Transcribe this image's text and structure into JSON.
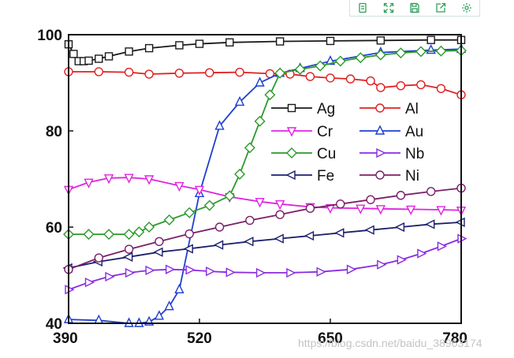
{
  "toolbar": {
    "buttons": [
      {
        "icon": "copy-icon"
      },
      {
        "icon": "expand-icon"
      },
      {
        "icon": "save-icon"
      },
      {
        "icon": "share-icon"
      },
      {
        "icon": "settings-icon"
      }
    ],
    "color": "#2e9e5b"
  },
  "watermark": "https://blog.csdn.net/baidu_38963174",
  "chart_data": {
    "type": "line",
    "title": "",
    "xlabel": "",
    "ylabel": "",
    "xlim": [
      390,
      780
    ],
    "ylim": [
      40,
      100
    ],
    "xticks": [
      390,
      520,
      650,
      780
    ],
    "yticks": [
      40,
      60,
      80,
      100
    ],
    "grid": false,
    "legend_position": "middle-right",
    "series": [
      {
        "name": "Ag",
        "color": "#1a1a1a",
        "marker": "square",
        "x": [
          390,
          395,
          400,
          405,
          410,
          420,
          430,
          450,
          470,
          500,
          520,
          550,
          600,
          650,
          700,
          750,
          780
        ],
        "y": [
          98,
          96,
          94.5,
          94.5,
          94.6,
          95,
          95.5,
          96.5,
          97.2,
          97.8,
          98.1,
          98.4,
          98.6,
          98.7,
          98.8,
          98.9,
          98.9
        ]
      },
      {
        "name": "Al",
        "color": "#e02020",
        "marker": "circle",
        "x": [
          390,
          420,
          450,
          470,
          500,
          530,
          560,
          590,
          610,
          630,
          650,
          670,
          690,
          700,
          720,
          740,
          760,
          780
        ],
        "y": [
          92.3,
          92.3,
          92.2,
          91.8,
          92,
          92.1,
          92.2,
          91.9,
          91.8,
          91.3,
          91,
          90.8,
          90.4,
          89,
          89.4,
          89.6,
          88.8,
          87.5
        ]
      },
      {
        "name": "Au",
        "color": "#1f3fd1",
        "marker": "triangle-up",
        "x": [
          390,
          420,
          450,
          460,
          470,
          480,
          490,
          500,
          520,
          540,
          560,
          580,
          600,
          620,
          650,
          700,
          750,
          780
        ],
        "y": [
          40.8,
          40.6,
          40,
          40,
          40.3,
          41.5,
          43.5,
          47,
          67,
          81,
          86,
          90,
          92,
          93,
          94.5,
          96.3,
          96.8,
          97
        ]
      },
      {
        "name": "Cr",
        "color": "#e024e0",
        "marker": "triangle-down",
        "x": [
          390,
          410,
          430,
          450,
          470,
          500,
          520,
          550,
          580,
          600,
          630,
          650,
          680,
          700,
          730,
          760,
          780
        ],
        "y": [
          67.8,
          69.3,
          70.2,
          70.3,
          70,
          68.6,
          67.8,
          66.3,
          65.3,
          64.8,
          64.2,
          64,
          63.9,
          63.8,
          63.7,
          63.6,
          63.5
        ]
      },
      {
        "name": "Cu",
        "color": "#2c9a2c",
        "marker": "diamond",
        "x": [
          390,
          410,
          430,
          450,
          460,
          470,
          490,
          510,
          530,
          550,
          560,
          570,
          580,
          590,
          600,
          620,
          640,
          660,
          680,
          700,
          720,
          740,
          760,
          780
        ],
        "y": [
          58.5,
          58.5,
          58.5,
          58.5,
          59,
          60,
          61.5,
          63,
          64.5,
          66.5,
          71,
          76.5,
          82,
          87.5,
          92,
          92.8,
          93.5,
          94.5,
          95.2,
          95.8,
          96.2,
          96.5,
          96.6,
          96.7
        ]
      },
      {
        "name": "Fe",
        "color": "#1c1f6e",
        "marker": "triangle-left",
        "x": [
          390,
          420,
          450,
          480,
          510,
          540,
          570,
          600,
          630,
          660,
          690,
          720,
          750,
          780
        ],
        "y": [
          51.5,
          52.8,
          53.8,
          54.8,
          55.5,
          56.3,
          57,
          57.6,
          58.2,
          58.8,
          59.4,
          60,
          60.6,
          61
        ]
      },
      {
        "name": "Nb",
        "color": "#8a2be2",
        "marker": "triangle-right",
        "x": [
          390,
          410,
          430,
          450,
          470,
          490,
          510,
          530,
          550,
          580,
          610,
          640,
          670,
          700,
          720,
          740,
          760,
          780
        ],
        "y": [
          47,
          48.5,
          49.7,
          50.5,
          51,
          51.2,
          51.1,
          50.8,
          50.6,
          50.5,
          50.5,
          50.7,
          51.2,
          52.2,
          53.2,
          54.5,
          56,
          57.6
        ]
      },
      {
        "name": "Ni",
        "color": "#7a1f6a",
        "marker": "circle",
        "x": [
          390,
          420,
          450,
          480,
          510,
          540,
          570,
          600,
          630,
          660,
          690,
          720,
          750,
          780
        ],
        "y": [
          51.2,
          53.6,
          55.4,
          57,
          58.6,
          60,
          61.4,
          62.6,
          63.9,
          64.8,
          65.7,
          66.6,
          67.4,
          68.1
        ]
      }
    ]
  }
}
